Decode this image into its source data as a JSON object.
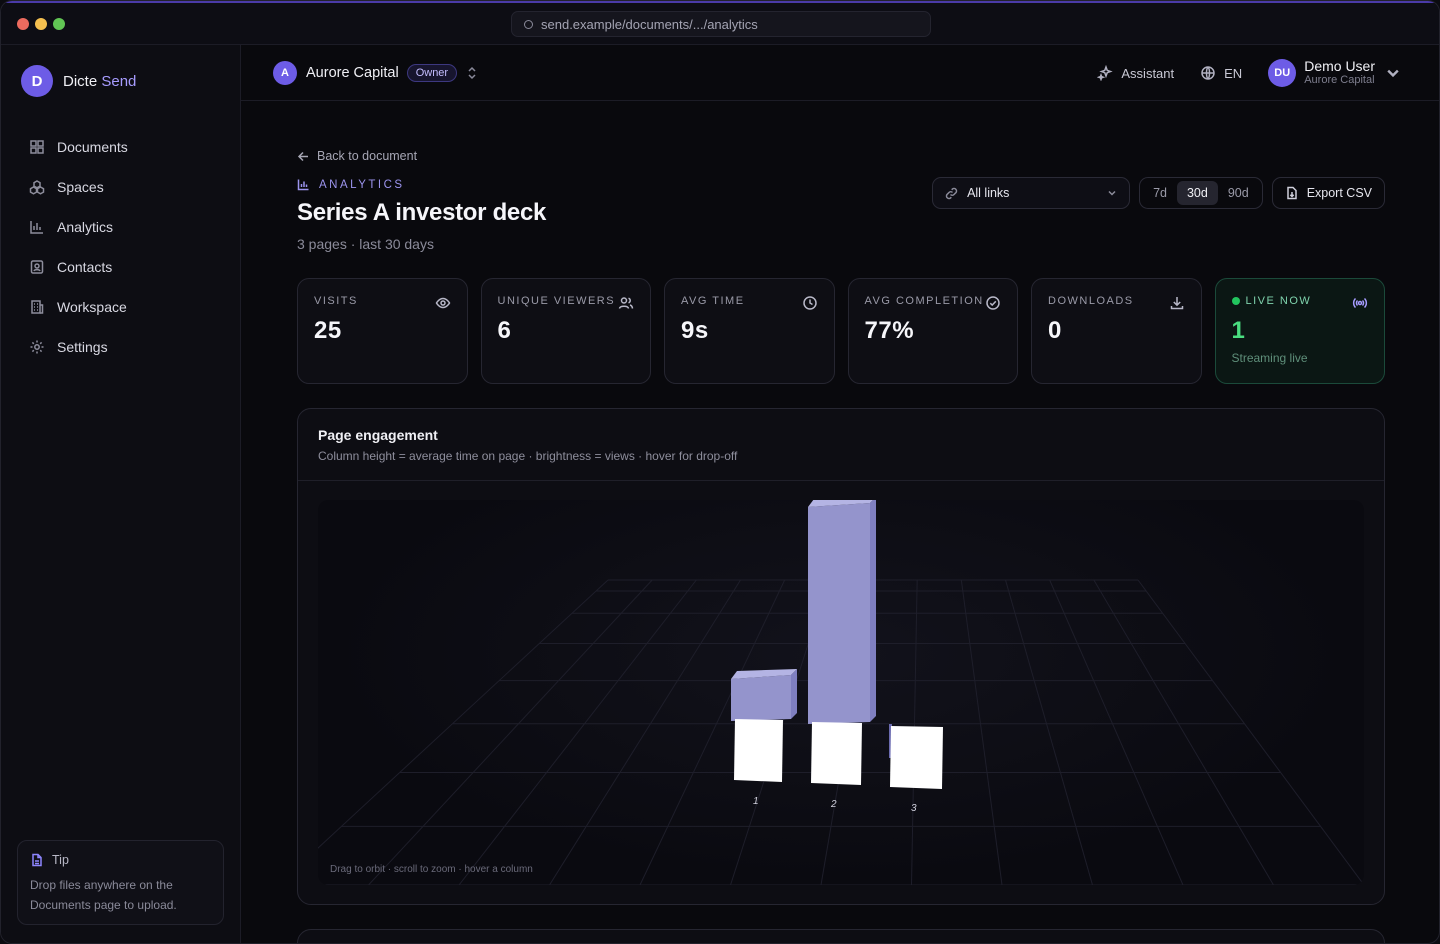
{
  "browser": {
    "url": "send.example/documents/.../analytics"
  },
  "sidebar": {
    "brand_initial": "D",
    "brand_name": "Dicte",
    "brand_suffix": "Send",
    "items": [
      {
        "label": "Documents",
        "icon": "grid-icon"
      },
      {
        "label": "Spaces",
        "icon": "boxes-icon"
      },
      {
        "label": "Analytics",
        "icon": "bar-chart-icon"
      },
      {
        "label": "Contacts",
        "icon": "contact-card-icon"
      },
      {
        "label": "Workspace",
        "icon": "building-icon"
      },
      {
        "label": "Settings",
        "icon": "gear-icon"
      }
    ],
    "tip": {
      "title": "Tip",
      "text": "Drop files anywhere on the Documents page to upload."
    }
  },
  "topbar": {
    "org_initial": "A",
    "org_name": "Aurore Capital",
    "role": "Owner",
    "assistant_label": "Assistant",
    "language": "EN",
    "user_initials": "DU",
    "user_name": "Demo User",
    "user_org": "Aurore Capital"
  },
  "page": {
    "back_label": "Back to document",
    "eyebrow": "ANALYTICS",
    "title": "Series A investor deck",
    "subtitle": "3 pages · last 30 days"
  },
  "controls": {
    "link_filter": "All links",
    "ranges": [
      "7d",
      "30d",
      "90d"
    ],
    "active_range": "30d",
    "export_label": "Export CSV"
  },
  "stats": [
    {
      "label": "VISITS",
      "value": "25",
      "icon": "eye-icon"
    },
    {
      "label": "UNIQUE VIEWERS",
      "value": "6",
      "icon": "users-icon"
    },
    {
      "label": "AVG TIME",
      "value": "9s",
      "icon": "clock-icon"
    },
    {
      "label": "AVG COMPLETION",
      "value": "77%",
      "icon": "check-circle-icon"
    },
    {
      "label": "DOWNLOADS",
      "value": "0",
      "icon": "download-icon"
    },
    {
      "label": "LIVE NOW",
      "value": "1",
      "sub": "Streaming live",
      "icon": "broadcast-icon"
    }
  ],
  "engagement": {
    "title": "Page engagement",
    "description": "Column height = average time on page · brightness = views · hover for drop-off",
    "hint": "Drag to orbit · scroll to zoom · hover a column"
  },
  "chart_data": {
    "type": "bar",
    "categories": [
      "1",
      "2",
      "3"
    ],
    "series": [
      {
        "values": [
          4,
          18,
          0
        ]
      }
    ]
  },
  "colors": {
    "accent": "#6d5ce6",
    "live": "#22c55e",
    "bar": "#9a9ad6"
  }
}
